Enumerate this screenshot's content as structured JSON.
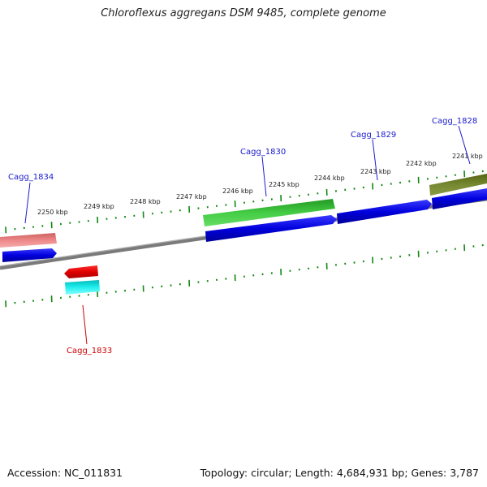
{
  "title": "Chloroflexus aggregans DSM 9485, complete genome",
  "footer": {
    "accession": "Accession: NC_011831",
    "info": "Topology: circular; Length: 4,684,931 bp; Genes: 3,787"
  },
  "colors": {
    "backbone": "#7f7f7f",
    "ticks": "#118811",
    "cds_forward": "#0000dd",
    "cds_reverse": "#e01010",
    "feature_green": "#33bb33",
    "feature_olive": "#667722",
    "feature_pink": "#ee8080",
    "feature_cyan": "#22dddd",
    "label_blue": "#1a1acc",
    "label_red": "#cc0000"
  },
  "kbp_labels": [
    "2250 kbp",
    "2249 kbp",
    "2248 kbp",
    "2247 kbp",
    "2246 kbp",
    "2245 kbp",
    "2244 kbp",
    "2243 kbp",
    "2242 kbp",
    "2241 kbp"
  ],
  "gene_labels": {
    "cagg_1834": "Cagg_1834",
    "cagg_1833": "Cagg_1833",
    "cagg_1830": "Cagg_1830",
    "cagg_1829": "Cagg_1829",
    "cagg_1828": "Cagg_1828"
  }
}
